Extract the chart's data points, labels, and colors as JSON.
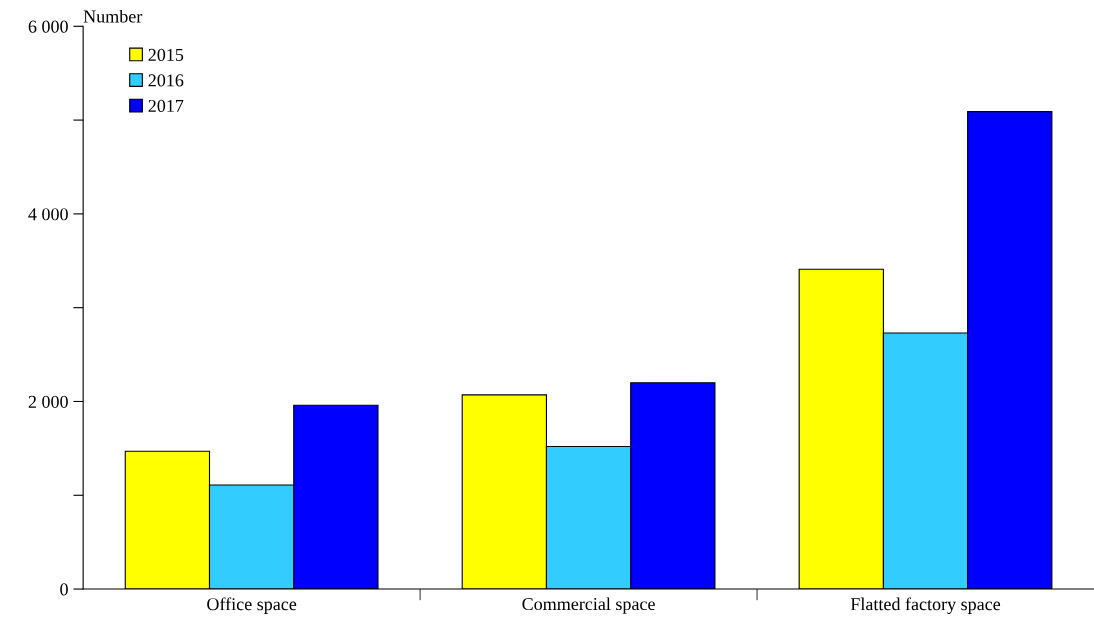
{
  "chart_data": {
    "type": "bar",
    "ylabel": "Number",
    "categories": [
      "Office space",
      "Commercial space",
      "Flatted factory space"
    ],
    "series": [
      {
        "name": "2015",
        "color": "#ffff00",
        "values": [
          1470,
          2070,
          3410
        ]
      },
      {
        "name": "2016",
        "color": "#33ccff",
        "values": [
          1110,
          1520,
          2730
        ]
      },
      {
        "name": "2017",
        "color": "#0000ff",
        "values": [
          1960,
          2200,
          5090
        ]
      }
    ],
    "ylim": [
      0,
      6000
    ],
    "yticks": [
      {
        "value": 0,
        "label": "0"
      },
      {
        "value": 1000,
        "label": null
      },
      {
        "value": 2000,
        "label": "2 000"
      },
      {
        "value": 3000,
        "label": null
      },
      {
        "value": 4000,
        "label": "4 000"
      },
      {
        "value": 5000,
        "label": null
      },
      {
        "value": 6000,
        "label": "6 000"
      }
    ],
    "legend": "top left",
    "grid": false
  }
}
